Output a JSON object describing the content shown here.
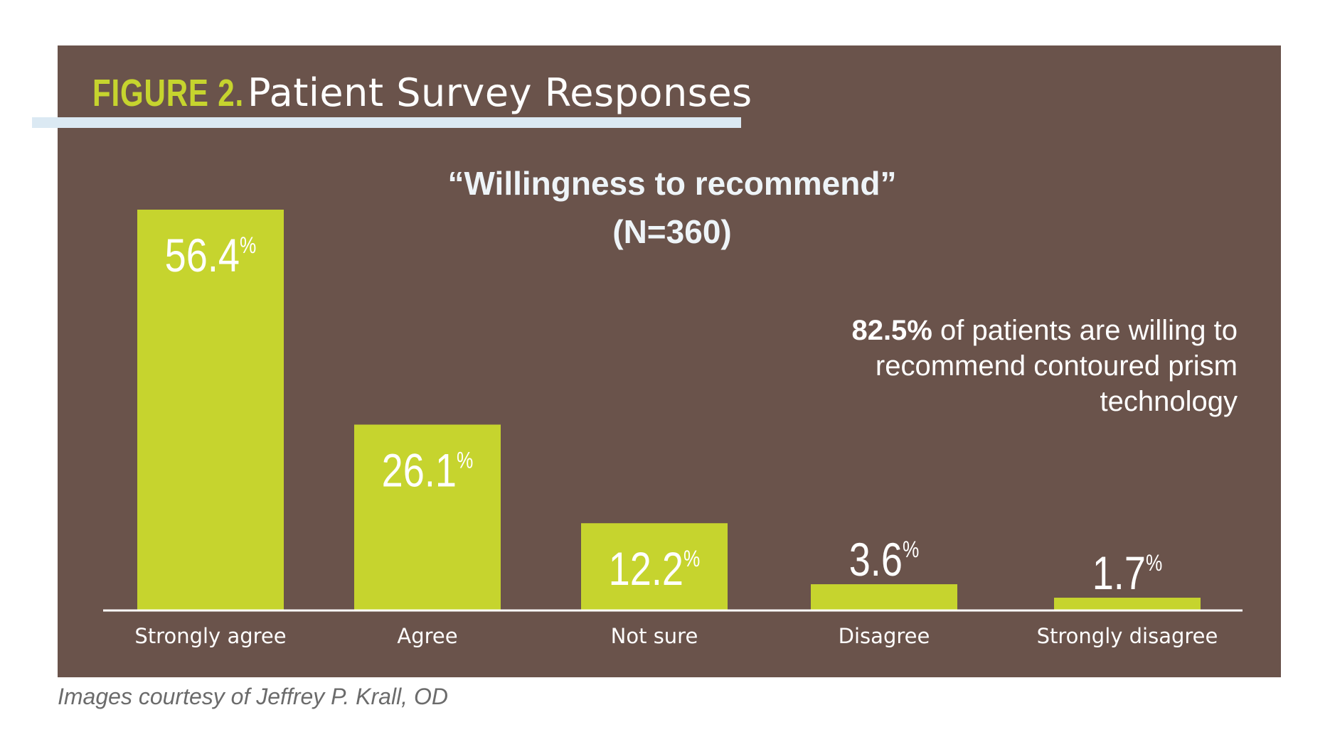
{
  "figure": {
    "label": "FIGURE 2.",
    "title": "Patient Survey Responses"
  },
  "callout": {
    "highlight": "82.5%",
    "text": " of patients are willing to recommend contoured prism technology"
  },
  "credit": "Images courtesy of Jeffrey P. Krall, OD",
  "colors": {
    "panel": "#6a534b",
    "bar": "#c6d42e",
    "accent_label": "#c6d42e",
    "underline": "#dbe9f3",
    "text": "#ffffff"
  },
  "chart_data": {
    "type": "bar",
    "title": "“Willingness to recommend”",
    "subtitle": "(N=360)",
    "categories": [
      "Strongly agree",
      "Agree",
      "Not sure",
      "Disagree",
      "Strongly disagree"
    ],
    "values": [
      56.4,
      26.1,
      12.2,
      3.6,
      1.7
    ],
    "value_labels": [
      "56.4",
      "26.1",
      "12.2",
      "3.6",
      "1.7"
    ],
    "unit": "%",
    "ylim": [
      0,
      56.4
    ],
    "grid": false,
    "legend": "none"
  }
}
